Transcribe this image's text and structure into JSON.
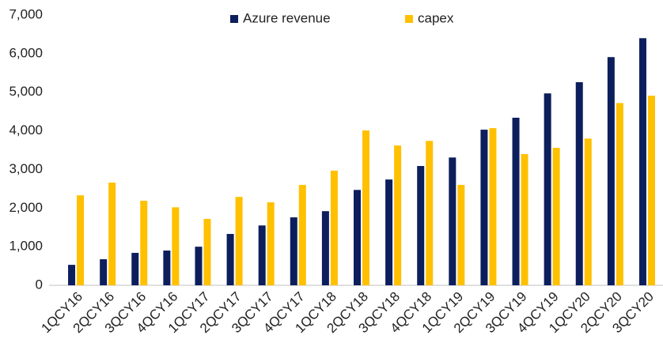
{
  "chart_data": {
    "type": "bar",
    "categories": [
      "1QCY16",
      "2QCY16",
      "3QCY16",
      "4QCY16",
      "1QCY17",
      "2QCY17",
      "3QCY17",
      "4QCY17",
      "1QCY18",
      "2QCY18",
      "3QCY18",
      "4QCY18",
      "1QCY19",
      "2QCY19",
      "3QCY19",
      "4QCY19",
      "1QCY20",
      "2QCY20",
      "3QCY20"
    ],
    "series": [
      {
        "name": "Azure revenue",
        "color": "#0c1e5b",
        "values": [
          530,
          675,
          840,
          900,
          1000,
          1330,
          1550,
          1760,
          1920,
          2470,
          2740,
          3090,
          3310,
          4030,
          4340,
          4970,
          5260,
          5910,
          6400
        ]
      },
      {
        "name": "capex",
        "color": "#ffc000",
        "values": [
          2330,
          2660,
          2190,
          2020,
          1720,
          2290,
          2150,
          2600,
          2970,
          4010,
          3620,
          3740,
          2600,
          4070,
          3400,
          3560,
          3800,
          4720,
          4910
        ]
      }
    ],
    "ylim": [
      0,
      7000
    ],
    "yticks": [
      0,
      {
        "value": 1000,
        "label": "1,000"
      },
      {
        "value": 2000,
        "label": "2,000"
      },
      {
        "value": 3000,
        "label": "3,000"
      },
      {
        "value": 4000,
        "label": "4,000"
      },
      {
        "value": 5000,
        "label": "5,000"
      },
      {
        "value": 6000,
        "label": "6,000"
      },
      {
        "value": 7000,
        "label": "7,000"
      }
    ],
    "grid": false,
    "legend": "top"
  }
}
